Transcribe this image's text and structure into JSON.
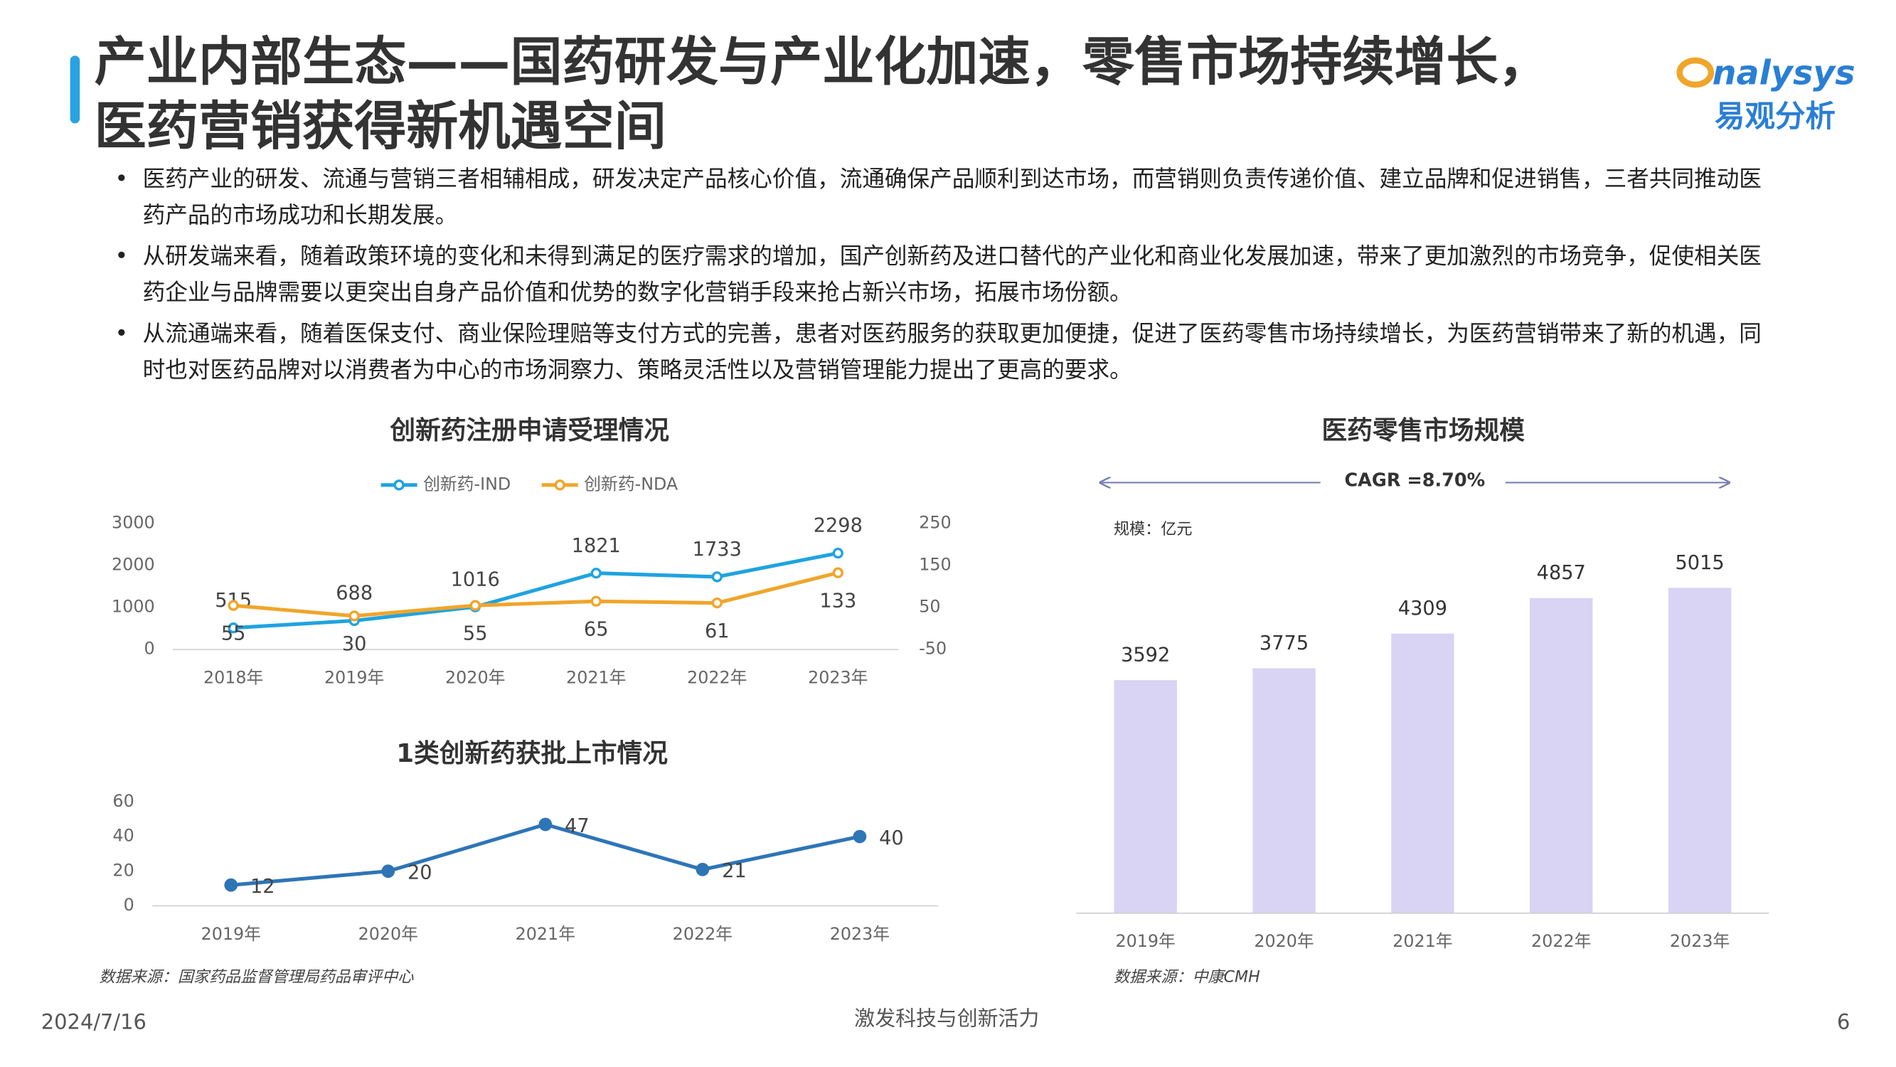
{
  "header": {
    "title": [
      "产业内部生态——国药研发与产业化加速，零售市场持续增长，",
      "医药营销获得新机遇空间"
    ],
    "logo": {
      "text": "nalysys",
      "subtitle": "易观分析"
    }
  },
  "bullets": [
    "医药产业的研发、流通与营销三者相辅相成，研发决定产品核心价值，流通确保产品顺利到达市场，而营销则负责传递价值、建立品牌和促进销售，三者共同推动医药产品的市场成功和长期发展。",
    "从研发端来看，随着政策环境的变化和未得到满足的医疗需求的增加，国产创新药及进口替代的产业化和商业化发展加速，带来了更加激烈的市场竞争，促使相关医药企业与品牌需要以更突出自身产品价值和优势的数字化营销手段来抢占新兴市场，拓展市场份额。",
    "从流通端来看，随着医保支付、商业保险理赔等支付方式的完善，患者对医药服务的获取更加便捷，促进了医药零售市场持续增长，为医药营销带来了新的机遇，同时也对医药品牌对以消费者为中心的市场洞察力、策略灵活性以及营销管理能力提出了更高的要求。"
  ],
  "chart_data": [
    {
      "type": "line",
      "title": "创新药注册申请受理情况",
      "categories": [
        "2018年",
        "2019年",
        "2020年",
        "2021年",
        "2022年",
        "2023年"
      ],
      "series": [
        {
          "name": "创新药-IND",
          "color": "#1fa3e0",
          "values": [
            515,
            688,
            1016,
            1821,
            1733,
            2298
          ]
        },
        {
          "name": "创新药-NDA",
          "color": "#f0a52a",
          "axis": "y2",
          "values": [
            55,
            30,
            55,
            65,
            61,
            133
          ]
        }
      ],
      "ylim": [
        0,
        3000
      ],
      "yticks": [
        0,
        1000,
        2000,
        3000
      ],
      "y2lim": [
        -50,
        250
      ],
      "y2ticks": [
        -50,
        50,
        150,
        250
      ],
      "legend": "top"
    },
    {
      "type": "line",
      "title": "1类创新药获批上市情况",
      "categories": [
        "2019年",
        "2020年",
        "2021年",
        "2022年",
        "2023年"
      ],
      "values": [
        12,
        20,
        47,
        21,
        40
      ],
      "color": "#2e75b6",
      "ylim": [
        0,
        60
      ],
      "yticks": [
        0,
        20,
        40,
        60
      ],
      "source": "数据来源：国家药品监督管理局药品审评中心"
    },
    {
      "type": "bar",
      "title": "医药零售市场规模",
      "annotation": "CAGR =8.70%",
      "unit_label": "规模：亿元",
      "categories": [
        "2019年",
        "2020年",
        "2021年",
        "2022年",
        "2023年"
      ],
      "values": [
        3592,
        3775,
        4309,
        4857,
        5015
      ],
      "color": "#d9d3f4",
      "source": "数据来源：中康CMH"
    }
  ],
  "footer": {
    "date": "2024/7/16",
    "slogan": "激发科技与创新活力",
    "page": "6"
  }
}
